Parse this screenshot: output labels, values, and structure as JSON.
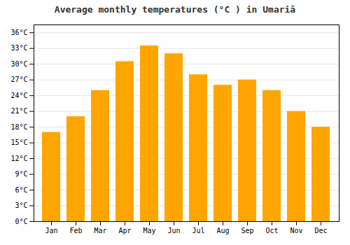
{
  "chart_data": {
    "type": "bar",
    "title": "Average monthly temperatures (°C ) in Umariā",
    "categories": [
      "Jan",
      "Feb",
      "Mar",
      "Apr",
      "May",
      "Jun",
      "Jul",
      "Aug",
      "Sep",
      "Oct",
      "Nov",
      "Dec"
    ],
    "values": [
      17,
      20,
      25,
      30.5,
      33.5,
      32,
      28,
      26,
      27,
      25,
      21,
      18
    ],
    "color": "#FFA500",
    "ylim": [
      0,
      37.5
    ],
    "yticks": [
      {
        "value": 0,
        "label": "0°C"
      },
      {
        "value": 3,
        "label": "3°C"
      },
      {
        "value": 6,
        "label": "6°C"
      },
      {
        "value": 9,
        "label": "9°C"
      },
      {
        "value": 12,
        "label": "12°C"
      },
      {
        "value": 15,
        "label": "15°C"
      },
      {
        "value": 18,
        "label": "18°C"
      },
      {
        "value": 21,
        "label": "21°C"
      },
      {
        "value": 24,
        "label": "24°C"
      },
      {
        "value": 27,
        "label": "27°C"
      },
      {
        "value": 30,
        "label": "30°C"
      },
      {
        "value": 33,
        "label": "33°C"
      },
      {
        "value": 36,
        "label": "36°C"
      }
    ],
    "grid": true
  }
}
